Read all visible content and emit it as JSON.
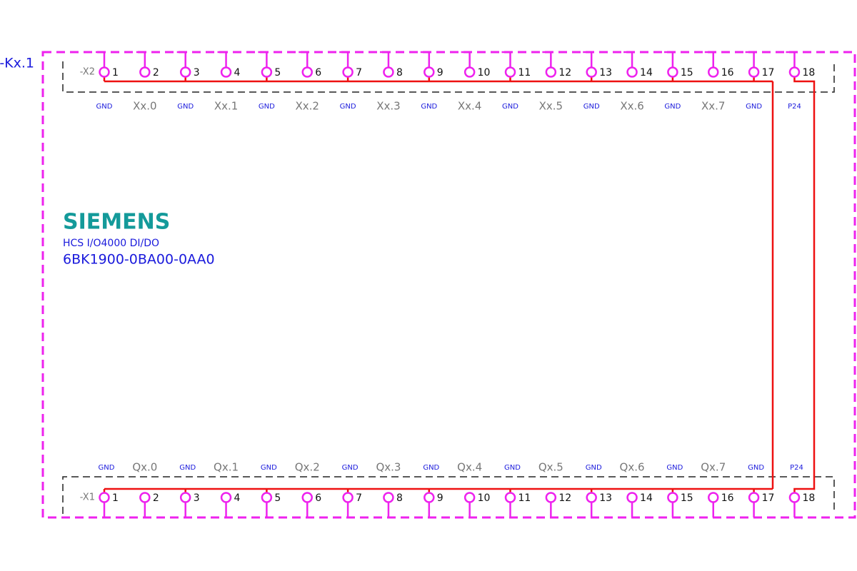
{
  "device_label": "-Kx.1",
  "brand": "SIEMENS",
  "description": "HCS I/O4000 DI/DO",
  "part_number": "6BK1900-0BA00-0AA0",
  "connectors": [
    {
      "name": "-X2",
      "terminals": [
        {
          "number": 1,
          "signal": "GND"
        },
        {
          "number": 2,
          "signal": "Xx.0"
        },
        {
          "number": 3,
          "signal": "GND"
        },
        {
          "number": 4,
          "signal": "Xx.1"
        },
        {
          "number": 5,
          "signal": "GND"
        },
        {
          "number": 6,
          "signal": "Xx.2"
        },
        {
          "number": 7,
          "signal": "GND"
        },
        {
          "number": 8,
          "signal": "Xx.3"
        },
        {
          "number": 9,
          "signal": "GND"
        },
        {
          "number": 10,
          "signal": "Xx.4"
        },
        {
          "number": 11,
          "signal": "GND"
        },
        {
          "number": 12,
          "signal": "Xx.5"
        },
        {
          "number": 13,
          "signal": "GND"
        },
        {
          "number": 14,
          "signal": "Xx.6"
        },
        {
          "number": 15,
          "signal": "GND"
        },
        {
          "number": 16,
          "signal": "Xx.7"
        },
        {
          "number": 17,
          "signal": "GND"
        },
        {
          "number": 18,
          "signal": "P24"
        }
      ]
    },
    {
      "name": "-X1",
      "terminals": [
        {
          "number": 1,
          "signal": "GND"
        },
        {
          "number": 2,
          "signal": "Qx.0"
        },
        {
          "number": 3,
          "signal": "GND"
        },
        {
          "number": 4,
          "signal": "Qx.1"
        },
        {
          "number": 5,
          "signal": "GND"
        },
        {
          "number": 6,
          "signal": "Qx.2"
        },
        {
          "number": 7,
          "signal": "GND"
        },
        {
          "number": 8,
          "signal": "Qx.3"
        },
        {
          "number": 9,
          "signal": "GND"
        },
        {
          "number": 10,
          "signal": "Qx.4"
        },
        {
          "number": 11,
          "signal": "GND"
        },
        {
          "number": 12,
          "signal": "Qx.5"
        },
        {
          "number": 13,
          "signal": "GND"
        },
        {
          "number": 14,
          "signal": "Qx.6"
        },
        {
          "number": 15,
          "signal": "GND"
        },
        {
          "number": 16,
          "signal": "Qx.7"
        },
        {
          "number": 17,
          "signal": "GND"
        },
        {
          "number": 18,
          "signal": "P24"
        }
      ]
    }
  ]
}
